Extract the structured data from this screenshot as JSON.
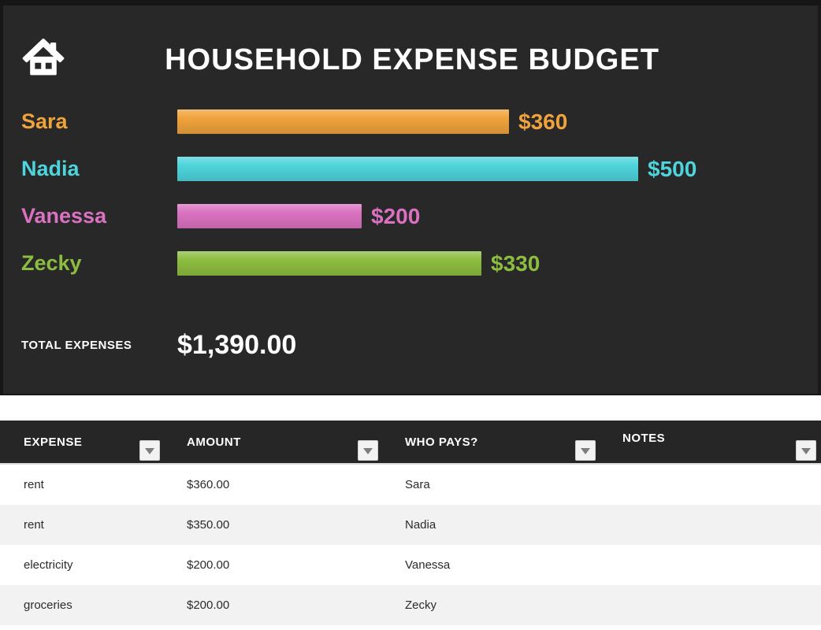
{
  "header": {
    "title": "HOUSEHOLD EXPENSE BUDGET"
  },
  "chart_data": {
    "type": "bar",
    "orientation": "horizontal",
    "categories": [
      "Sara",
      "Nadia",
      "Vanessa",
      "Zecky"
    ],
    "values": [
      360,
      500,
      200,
      330
    ],
    "value_labels": [
      "$360",
      "$500",
      "$200",
      "$330"
    ],
    "colors": [
      "#F0A33C",
      "#4ED4DC",
      "#DB72C1",
      "#8CBD40"
    ],
    "xlim": [
      0,
      500
    ],
    "title": "HOUSEHOLD EXPENSE BUDGET",
    "legend": "none",
    "grid": false,
    "total_label": "TOTAL EXPENSES",
    "total_value": "$1,390.00"
  },
  "table": {
    "columns": [
      {
        "label": "EXPENSE",
        "filter_icon": "filter-dropdown-icon"
      },
      {
        "label": "AMOUNT",
        "filter_icon": "filter-dropdown-icon"
      },
      {
        "label": "WHO PAYS?",
        "filter_icon": "filter-dropdown-icon"
      },
      {
        "label": "NOTES",
        "filter_icon": "filter-dropdown-icon"
      }
    ],
    "rows": [
      {
        "expense": "rent",
        "amount": "$360.00",
        "who_pays": "Sara",
        "notes": ""
      },
      {
        "expense": "rent",
        "amount": "$350.00",
        "who_pays": "Nadia",
        "notes": ""
      },
      {
        "expense": "electricity",
        "amount": "$200.00",
        "who_pays": "Vanessa",
        "notes": ""
      },
      {
        "expense": "groceries",
        "amount": "$200.00",
        "who_pays": "Zecky",
        "notes": ""
      }
    ]
  },
  "icons": {
    "home": "home-icon"
  },
  "colors": {
    "hero_background": "#282828",
    "frame": "#161616",
    "header_band": "#262626",
    "row_alt": "#f2f2f2",
    "text_light": "#ffffff",
    "text_dark": "#2b2b2b",
    "series_orange": "#F0A33C",
    "series_cyan": "#4ED4DC",
    "series_pink": "#DB72C1",
    "series_green": "#8CBD40"
  }
}
